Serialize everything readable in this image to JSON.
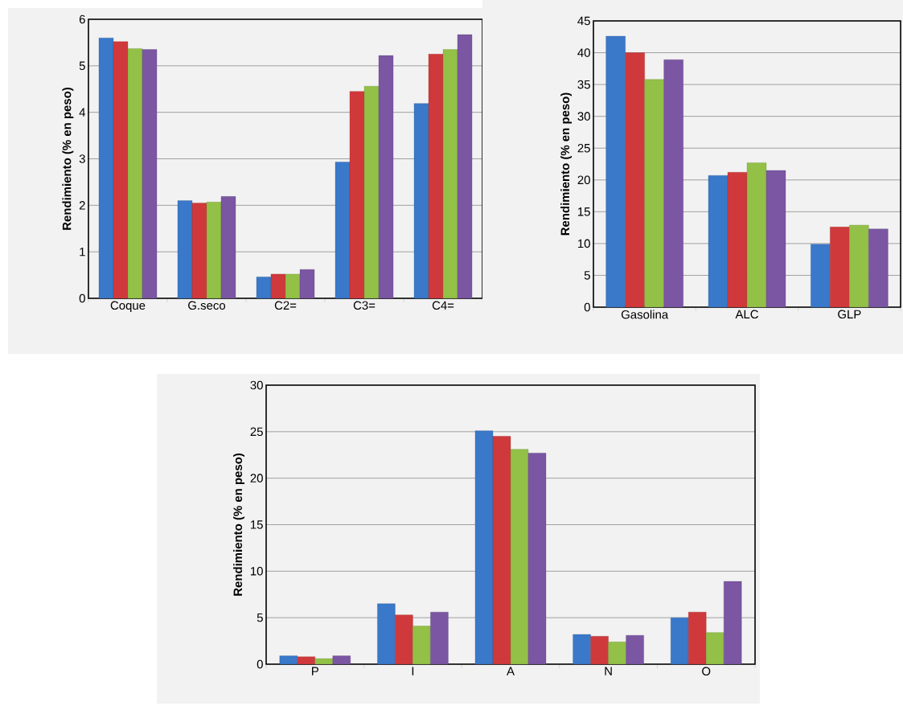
{
  "chart_data": [
    {
      "type": "bar",
      "ylabel": "Rendimiento (% en peso)",
      "categories": [
        "Coque",
        "G.seco",
        "C2=",
        "C3=",
        "C4="
      ],
      "ylim": [
        0,
        6
      ],
      "yticks": [
        0,
        1,
        2,
        3,
        4,
        5,
        6
      ],
      "grid": "y",
      "series": [
        {
          "color": "#3a78c9",
          "values": [
            5.6,
            2.1,
            0.46,
            2.93,
            4.19
          ]
        },
        {
          "color": "#d0393b",
          "values": [
            5.52,
            2.05,
            0.52,
            4.45,
            5.25
          ]
        },
        {
          "color": "#93c047",
          "values": [
            5.37,
            2.07,
            0.52,
            4.56,
            5.35
          ]
        },
        {
          "color": "#7b56a3",
          "values": [
            5.35,
            2.19,
            0.62,
            5.22,
            5.67
          ]
        }
      ]
    },
    {
      "type": "bar",
      "ylabel": "Rendimiento (% en peso)",
      "categories": [
        "Gasolina",
        "ALC",
        "GLP"
      ],
      "ylim": [
        0,
        45
      ],
      "yticks": [
        0,
        5,
        10,
        15,
        20,
        25,
        30,
        35,
        40,
        45
      ],
      "grid": "y",
      "series": [
        {
          "color": "#3a78c9",
          "values": [
            42.6,
            20.7,
            9.9
          ]
        },
        {
          "color": "#d0393b",
          "values": [
            40.0,
            21.2,
            12.6
          ]
        },
        {
          "color": "#93c047",
          "values": [
            35.8,
            22.7,
            12.9
          ]
        },
        {
          "color": "#7b56a3",
          "values": [
            38.9,
            21.5,
            12.3
          ]
        }
      ]
    },
    {
      "type": "bar",
      "ylabel": "Rendimiento (% en peso)",
      "categories": [
        "P",
        "I",
        "A",
        "N",
        "O"
      ],
      "ylim": [
        0,
        30
      ],
      "yticks": [
        0,
        5,
        10,
        15,
        20,
        25,
        30
      ],
      "grid": "y",
      "series": [
        {
          "color": "#3a78c9",
          "values": [
            0.9,
            6.5,
            25.1,
            3.2,
            5.0
          ]
        },
        {
          "color": "#d0393b",
          "values": [
            0.8,
            5.3,
            24.5,
            3.0,
            5.6
          ]
        },
        {
          "color": "#93c047",
          "values": [
            0.6,
            4.1,
            23.1,
            2.4,
            3.4
          ]
        },
        {
          "color": "#7b56a3",
          "values": [
            0.9,
            5.6,
            22.7,
            3.1,
            8.9
          ]
        }
      ]
    }
  ]
}
